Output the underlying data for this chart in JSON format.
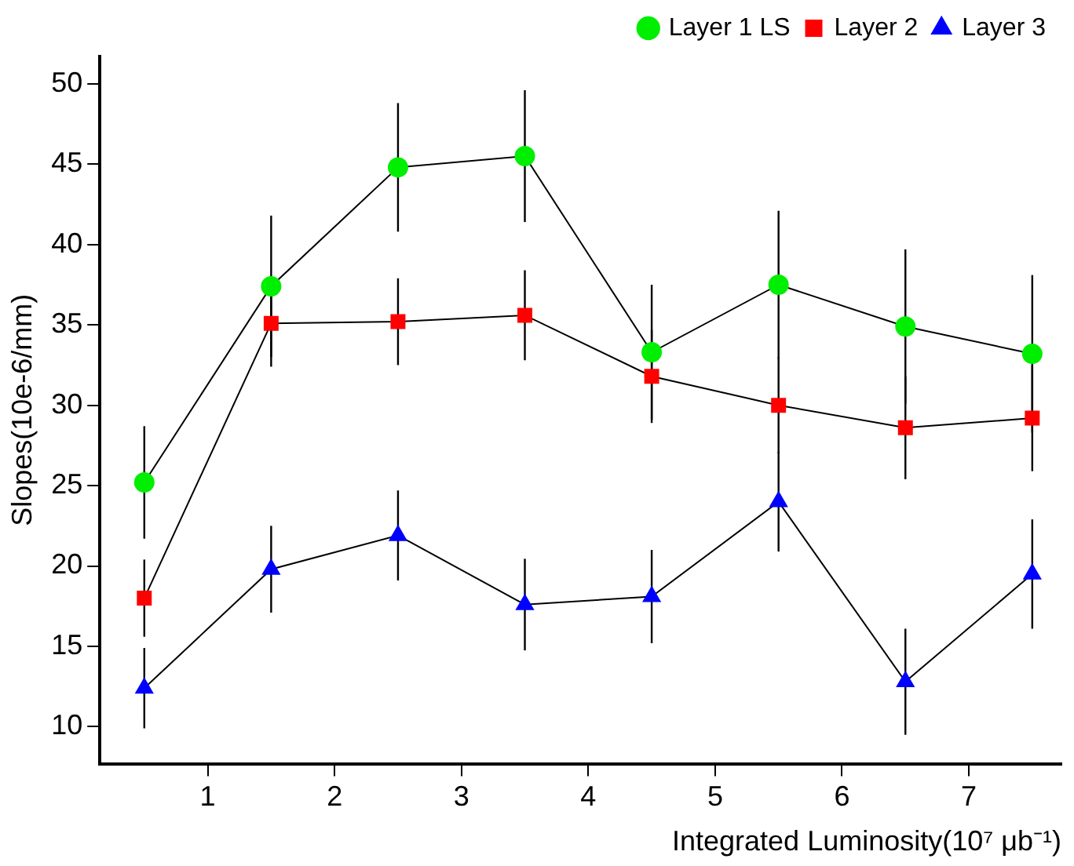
{
  "chart_data": {
    "type": "line",
    "xlabel": "Integrated Luminosity(10⁷ μb⁻¹)",
    "ylabel": "Slopes(10e-6/mm)",
    "x": [
      0.5,
      1.5,
      2.5,
      3.5,
      4.5,
      5.5,
      6.5,
      7.5
    ],
    "xlim": [
      0.15,
      7.73
    ],
    "xticks": [
      1,
      2,
      3,
      4,
      5,
      6,
      7
    ],
    "ylim": [
      7.7,
      51.7
    ],
    "yticks": [
      10,
      15,
      20,
      25,
      30,
      35,
      40,
      45,
      50
    ],
    "grid": false,
    "legend": "top right",
    "series": [
      {
        "name": "Layer 1 LS",
        "color": "#00ee00",
        "marker": "circle",
        "values": [
          25.2,
          37.4,
          44.8,
          45.5,
          33.3,
          37.5,
          34.9,
          33.2
        ],
        "errors": [
          3.5,
          4.4,
          4,
          4.1,
          4.2,
          4.6,
          4.8,
          4.9
        ]
      },
      {
        "name": "Layer 2",
        "color": "#ff0000",
        "marker": "square",
        "values": [
          18.0,
          35.1,
          35.2,
          35.6,
          31.8,
          30.0,
          28.6,
          29.2
        ],
        "errors": [
          2.4,
          2.7,
          2.7,
          2.8,
          2.9,
          3,
          3.2,
          3.3
        ]
      },
      {
        "name": "Layer 3",
        "color": "#0000ff",
        "marker": "triangle",
        "values": [
          12.4,
          19.8,
          21.9,
          17.6,
          18.1,
          24.0,
          12.8,
          19.5
        ],
        "errors": [
          2.5,
          2.7,
          2.8,
          2.85,
          2.9,
          3.1,
          3.3,
          3.4
        ]
      }
    ]
  }
}
